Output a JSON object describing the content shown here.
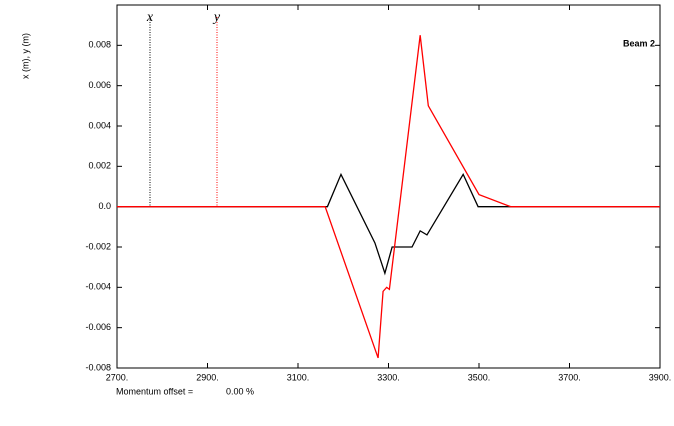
{
  "chart_data": {
    "type": "line",
    "title": "Beam 2",
    "y_label": "x (m), y (m)",
    "note_label": "Momentum offset =",
    "note_value": "0.00 %",
    "xlim": [
      2700,
      3900
    ],
    "ylim": [
      -0.008,
      0.01
    ],
    "xticks": [
      {
        "value": 2700,
        "label": "2700."
      },
      {
        "value": 2900,
        "label": "2900."
      },
      {
        "value": 3100,
        "label": "3100."
      },
      {
        "value": 3300,
        "label": "3300."
      },
      {
        "value": 3500,
        "label": "3500."
      },
      {
        "value": 3700,
        "label": "3700."
      },
      {
        "value": 3900,
        "label": "3900."
      }
    ],
    "yticks": [
      {
        "value": -0.008,
        "label": "-0.008"
      },
      {
        "value": -0.006,
        "label": "-0.006"
      },
      {
        "value": -0.004,
        "label": "-0.004"
      },
      {
        "value": -0.002,
        "label": "-0.002"
      },
      {
        "value": 0,
        "label": "0.0"
      },
      0.002,
      0.004,
      0.006,
      0.008
    ],
    "series": [
      {
        "name": "x",
        "color": "#000000",
        "x": [
          2700,
          3165,
          3195,
          3270,
          3292,
          3308,
          3352,
          3370,
          3385,
          3465,
          3498,
          3900
        ],
        "values": [
          0,
          0,
          0.0016,
          -0.0018,
          -0.0033,
          -0.002,
          -0.002,
          -0.0012,
          -0.0014,
          0.0016,
          0,
          0
        ]
      },
      {
        "name": "y",
        "color": "#ff0000",
        "x": [
          2700,
          3160,
          3277,
          3288,
          3296,
          3302,
          3370,
          3388,
          3500,
          3570,
          3900
        ],
        "values": [
          0,
          0,
          -0.0075,
          -0.0042,
          -0.004,
          -0.0041,
          0.0085,
          0.005,
          0.0006,
          0,
          0
        ]
      }
    ]
  }
}
